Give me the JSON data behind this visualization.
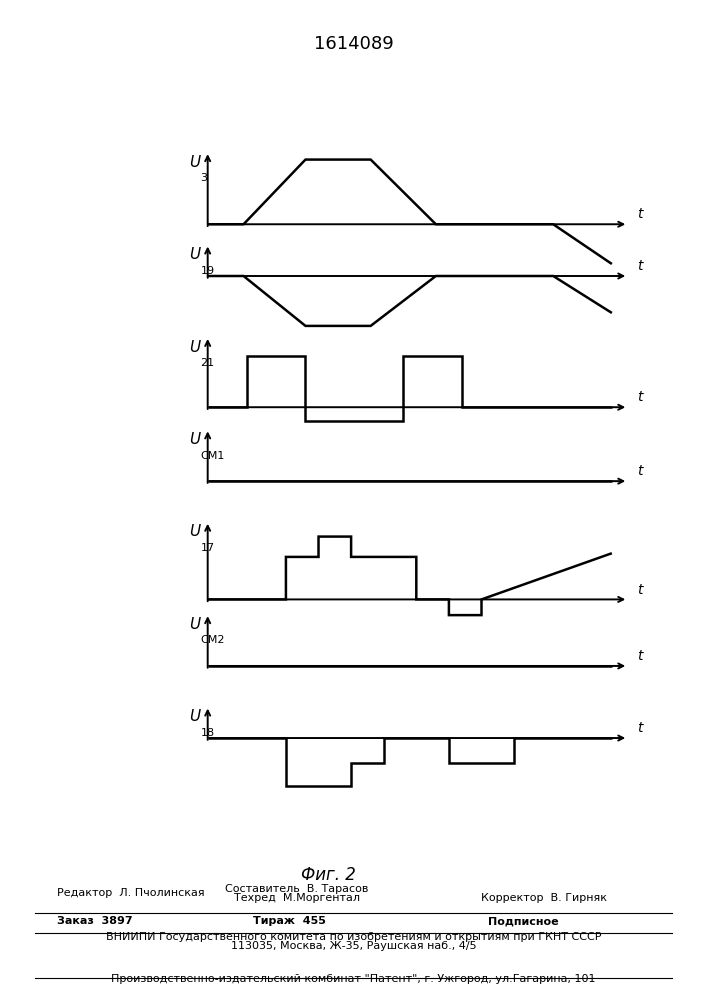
{
  "title": "1614089",
  "fig_label": "Фиг. 2",
  "background_color": "#ffffff",
  "line_color": "#000000",
  "line_width": 1.8,
  "signals": [
    {
      "label": "U",
      "sub": "3",
      "row": 6,
      "baseline": 0.18,
      "wx": [
        0.3,
        0.85,
        1.8,
        2.8,
        3.8,
        5.6,
        6.5
      ],
      "wy": [
        0.18,
        0.18,
        0.88,
        0.88,
        0.18,
        0.18,
        -0.25
      ]
    },
    {
      "label": "U",
      "sub": "19",
      "row": 5,
      "baseline": 0.62,
      "wx": [
        0.3,
        0.85,
        1.8,
        2.8,
        3.8,
        5.6,
        6.5
      ],
      "wy": [
        0.62,
        0.62,
        0.08,
        0.08,
        0.62,
        0.62,
        0.22
      ]
    },
    {
      "label": "U",
      "sub": "21",
      "row": 4,
      "baseline": 0.2,
      "wx": [
        0.3,
        0.9,
        0.9,
        1.8,
        1.8,
        3.3,
        3.3,
        4.2,
        4.2,
        6.5
      ],
      "wy": [
        0.2,
        0.2,
        0.75,
        0.75,
        0.05,
        0.05,
        0.75,
        0.75,
        0.2,
        0.2
      ]
    },
    {
      "label": "U",
      "sub": "CM1",
      "row": 3,
      "baseline": 0.4,
      "wx": [
        0.3,
        6.5
      ],
      "wy": [
        0.4,
        0.4
      ]
    },
    {
      "label": "U",
      "sub": "17",
      "row": 2,
      "baseline": 0.12,
      "wx": [
        0.3,
        1.5,
        1.5,
        2.0,
        2.0,
        2.5,
        2.5,
        3.5,
        3.5,
        4.0,
        4.0,
        4.5,
        4.5,
        6.5
      ],
      "wy": [
        0.12,
        0.12,
        0.58,
        0.58,
        0.8,
        0.8,
        0.58,
        0.58,
        0.12,
        0.12,
        -0.05,
        -0.05,
        0.12,
        0.62
      ]
    },
    {
      "label": "U",
      "sub": "CM2",
      "row": 1,
      "baseline": 0.4,
      "wx": [
        0.3,
        6.5
      ],
      "wy": [
        0.4,
        0.4
      ]
    },
    {
      "label": "U",
      "sub": "18",
      "row": 0,
      "baseline": 0.62,
      "wx": [
        0.3,
        1.5,
        1.5,
        2.5,
        2.5,
        3.0,
        3.0,
        4.0,
        4.0,
        5.0,
        5.0,
        6.5
      ],
      "wy": [
        0.62,
        0.62,
        0.1,
        0.1,
        0.35,
        0.35,
        0.62,
        0.62,
        0.35,
        0.35,
        0.62,
        0.62
      ]
    }
  ],
  "bottom_texts": {
    "editor": "Редактор  Л. Пчолинская",
    "compiler": "Составитель  В. Тарасов",
    "techred": "Техред  М.Моргентал",
    "corrector": "Корректор  В. Гирняк",
    "order": "Заказ  3897",
    "tirazh": "Тираж  455",
    "podpisnoe": "Подписное",
    "vniip1": "ВНИИПИ Государственного комитета по изобретениям и открытиям при ГКНТ СССР",
    "vniip2": "113035, Москва, Ж-35, Раушская наб., 4/5",
    "factory": "Производственно-издательский комбинат \"Патент\", г. Ужгород, ул.Гагарина, 101"
  }
}
